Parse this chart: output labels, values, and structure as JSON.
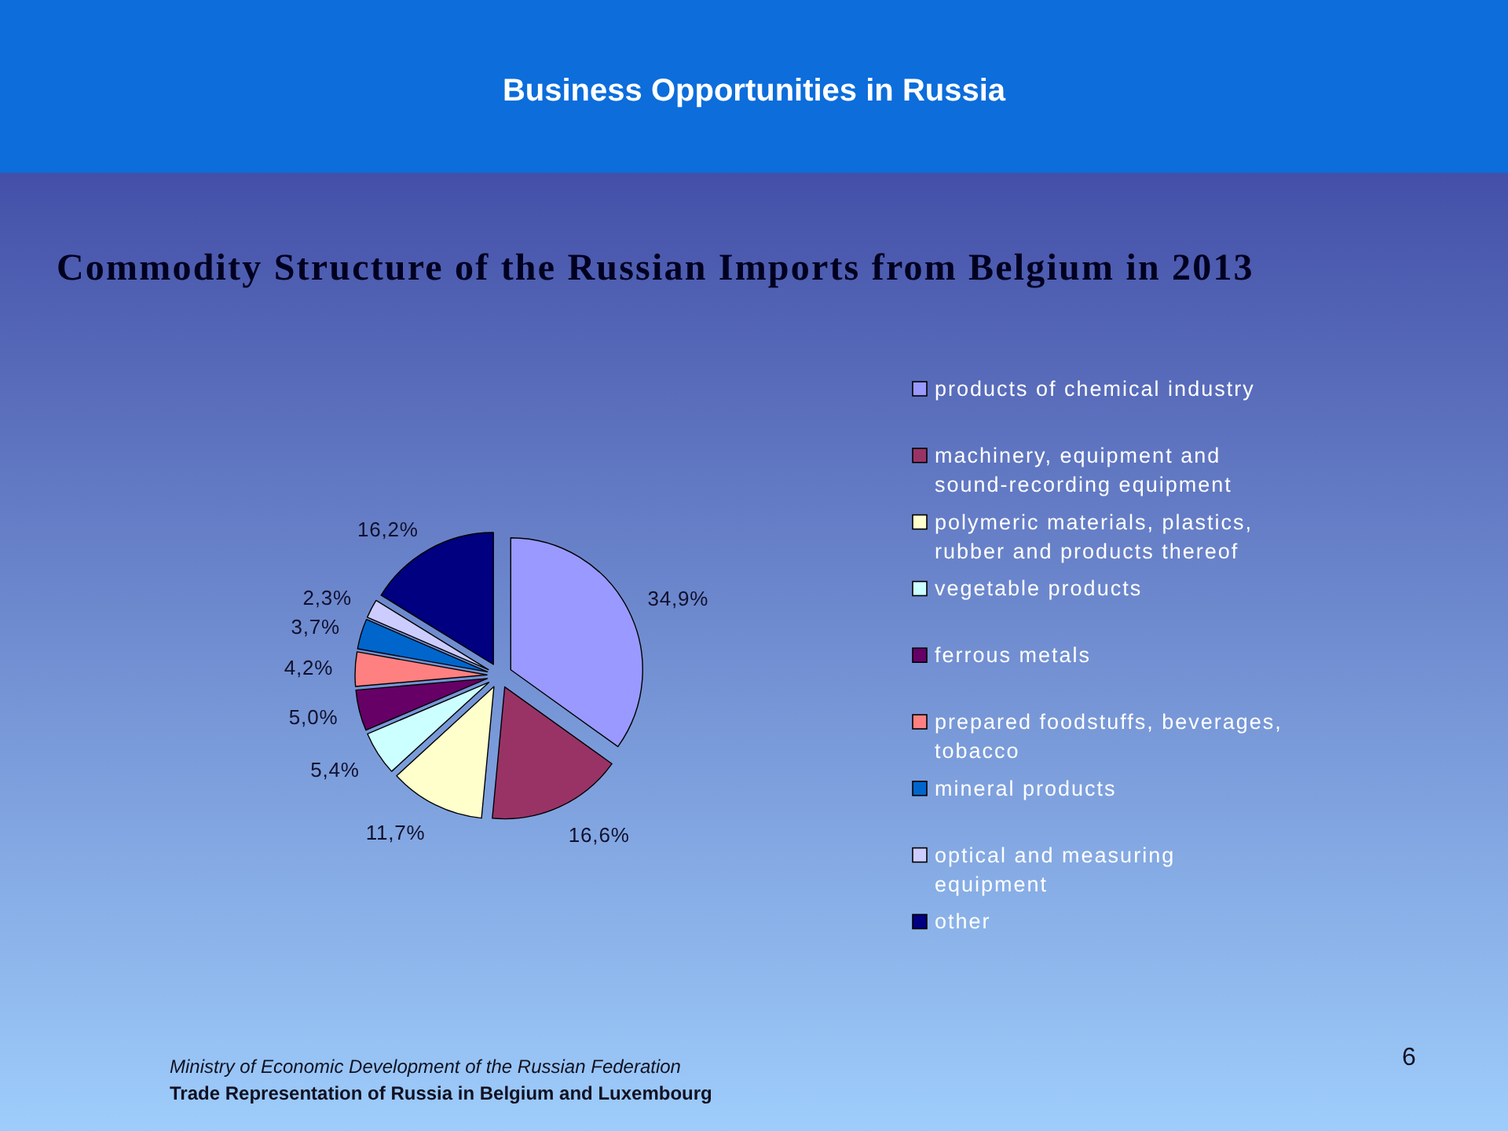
{
  "chart_data": {
    "type": "pie",
    "title": "Commodity Structure of the Russian Imports from Belgium in 2013",
    "categories": [
      "products of chemical industry",
      "machinery, equipment and sound-recording equipment",
      "polymeric materials, plastics, rubber and products thereof",
      "vegetable products",
      "ferrous metals",
      "prepared foodstuffs, beverages, tobacco",
      "mineral products",
      "optical and measuring equipment",
      "other"
    ],
    "values": [
      34.9,
      16.6,
      11.7,
      5.4,
      5.0,
      4.2,
      3.7,
      2.3,
      16.2
    ],
    "colors": [
      "#9999ff",
      "#993366",
      "#ffffcc",
      "#ccffff",
      "#660066",
      "#ff8080",
      "#0066cc",
      "#ccccff",
      "#000080"
    ],
    "value_labels": [
      "34,9%",
      "16,6%",
      "11,7%",
      "5,4%",
      "5,0%",
      "4,2%",
      "3,7%",
      "2,3%",
      "16,2%"
    ],
    "legend": "right",
    "annotations": [
      "Business Opportunities in Russia",
      "Ministry of Economic Development of the Russian Federation",
      "Trade Representation of Russia in Belgium and Luxembourg",
      "6"
    ]
  }
}
